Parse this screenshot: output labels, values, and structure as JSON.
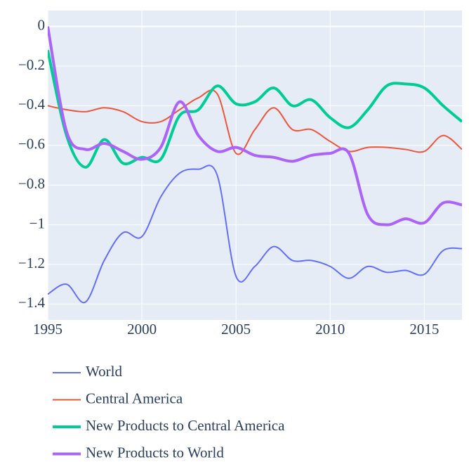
{
  "chart_data": {
    "type": "line",
    "x": [
      1995,
      1996,
      1997,
      1998,
      1999,
      2000,
      2001,
      2002,
      2003,
      2004,
      2005,
      2006,
      2007,
      2008,
      2009,
      2010,
      2011,
      2012,
      2013,
      2014,
      2015,
      2016,
      2017
    ],
    "series": [
      {
        "name": "World",
        "color": "#636efa",
        "line_width": 2,
        "values": [
          -1.35,
          -1.3,
          -1.39,
          -1.18,
          -1.04,
          -1.06,
          -0.86,
          -0.74,
          -0.72,
          -0.75,
          -1.26,
          -1.21,
          -1.11,
          -1.18,
          -1.18,
          -1.21,
          -1.27,
          -1.21,
          -1.24,
          -1.23,
          -1.25,
          -1.13,
          -1.12
        ]
      },
      {
        "name": "Central America",
        "color": "#ef553b",
        "line_width": 2,
        "values": [
          -0.4,
          -0.42,
          -0.43,
          -0.41,
          -0.43,
          -0.48,
          -0.48,
          -0.42,
          -0.36,
          -0.34,
          -0.64,
          -0.52,
          -0.41,
          -0.52,
          -0.52,
          -0.58,
          -0.63,
          -0.61,
          -0.61,
          -0.62,
          -0.63,
          -0.55,
          -0.62
        ]
      },
      {
        "name": "New Products to Central America",
        "color": "#00cc96",
        "line_width": 4,
        "values": [
          -0.12,
          -0.55,
          -0.71,
          -0.57,
          -0.69,
          -0.66,
          -0.67,
          -0.45,
          -0.42,
          -0.3,
          -0.39,
          -0.38,
          -0.31,
          -0.4,
          -0.37,
          -0.46,
          -0.51,
          -0.42,
          -0.3,
          -0.29,
          -0.31,
          -0.4,
          -0.48
        ]
      },
      {
        "name": "New Products to World",
        "color": "#ab63fa",
        "line_width": 4,
        "values": [
          0.0,
          -0.53,
          -0.62,
          -0.59,
          -0.63,
          -0.67,
          -0.61,
          -0.38,
          -0.55,
          -0.63,
          -0.61,
          -0.65,
          -0.66,
          -0.68,
          -0.65,
          -0.64,
          -0.64,
          -0.95,
          -1.0,
          -0.97,
          -0.99,
          -0.89,
          -0.9
        ]
      }
    ],
    "xlim": [
      1995,
      2017
    ],
    "xticks": [
      1995,
      2000,
      2005,
      2010,
      2015
    ],
    "ylim": [
      -1.48,
      0.08
    ],
    "yticks": [
      0,
      {
        "value": -0.2,
        "label": "−0.2"
      },
      {
        "value": -0.4,
        "label": "−0.4"
      },
      {
        "value": -0.6,
        "label": "−0.6"
      },
      {
        "value": -0.8,
        "label": "−0.8"
      },
      {
        "value": -1,
        "label": "−1"
      },
      {
        "value": -1.2,
        "label": "−1.2"
      },
      {
        "value": -1.4,
        "label": "−1.4"
      }
    ],
    "grid": true,
    "legend": "bottom"
  }
}
